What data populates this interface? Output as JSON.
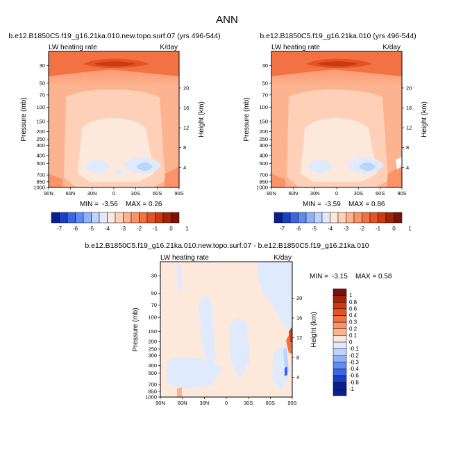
{
  "figure_title": "ANN",
  "chart_data": [
    {
      "type": "contour",
      "title": "b.e12.B1850C5.f19_g16.21ka.010.new.topo.surf.07 (yrs 496-544)",
      "variable_label": "LW heating rate",
      "units_label": "K/day",
      "xlabel": "",
      "ylabel": "Pressure (mb)",
      "y2label": "Height (km)",
      "x_ticks": [
        "90N",
        "60N",
        "30N",
        "0",
        "30S",
        "60S",
        "90S"
      ],
      "y_ticks": [
        "30",
        "50",
        "70",
        "100",
        "150",
        "200",
        "250",
        "300",
        "400",
        "500",
        "700",
        "850",
        "1000"
      ],
      "y2_ticks": [
        "20",
        "16",
        "12",
        "8",
        "4"
      ],
      "stats": {
        "min_label": "MIN =",
        "min": "-3.56",
        "max_label": "MAX =",
        "max": "0.26"
      },
      "colorbar": {
        "labels": [
          "-7",
          "-6",
          "-5",
          "-4",
          "-3",
          "-2",
          "-1",
          "0",
          "1"
        ]
      }
    },
    {
      "type": "contour",
      "title": "b.e12.B1850C5.f19_g16.21ka.010 (yrs 496-544)",
      "variable_label": "LW heating rate",
      "units_label": "K/day",
      "xlabel": "",
      "ylabel": "Pressure (mb)",
      "y2label": "Height (km)",
      "x_ticks": [
        "90N",
        "60N",
        "30N",
        "0",
        "30S",
        "60S",
        "90S"
      ],
      "y_ticks": [
        "30",
        "50",
        "70",
        "100",
        "150",
        "200",
        "250",
        "300",
        "400",
        "500",
        "700",
        "850",
        "1000"
      ],
      "y2_ticks": [
        "20",
        "16",
        "12",
        "8",
        "4"
      ],
      "stats": {
        "min_label": "MIN =",
        "min": "-3.59",
        "max_label": "MAX =",
        "max": "0.86"
      },
      "colorbar": {
        "labels": [
          "-7",
          "-6",
          "-5",
          "-4",
          "-3",
          "-2",
          "-1",
          "0",
          "1"
        ]
      }
    },
    {
      "type": "contour",
      "title": "b.e12.B1850C5.f19_g16.21ka.010.new.topo.surf.07 - b.e12.B1850C5.f19_g16.21ka.010",
      "variable_label": "LW heating rate",
      "units_label": "K/day",
      "xlabel": "",
      "ylabel": "Pressure (mb)",
      "y2label": "Height (km)",
      "x_ticks": [
        "90N",
        "60N",
        "30N",
        "0",
        "30S",
        "60S",
        "90S"
      ],
      "y_ticks": [
        "30",
        "50",
        "70",
        "100",
        "150",
        "200",
        "250",
        "300",
        "400",
        "500",
        "700",
        "850",
        "1000"
      ],
      "y2_ticks": [
        "20",
        "16",
        "12",
        "8",
        "4"
      ],
      "stats": {
        "min_label": "MIN =",
        "min": "-3.15",
        "max_label": "MAX =",
        "max": "0.58"
      },
      "colorbar": {
        "labels": [
          "1",
          "0.8",
          "0.6",
          "0.4",
          "0.3",
          "0.2",
          "0.1",
          "0",
          "-0.1",
          "-0.2",
          "-0.3",
          "-0.4",
          "-0.6",
          "-0.8",
          "-1"
        ]
      }
    }
  ],
  "colors": {
    "abs_scale": [
      "#0a1f8f",
      "#1b3fc6",
      "#3a66e6",
      "#5f8bf2",
      "#8eb2f7",
      "#bcd4fb",
      "#dfeafd",
      "#fde9dc",
      "#fdd0b7",
      "#fcb38f",
      "#fb9268",
      "#f37244",
      "#e55325",
      "#cb3a12",
      "#a32409",
      "#7a1306"
    ],
    "diff_scale": [
      "#7a1306",
      "#a32409",
      "#cb3a12",
      "#e55325",
      "#f37244",
      "#fb9268",
      "#fcb38f",
      "#fde9dc",
      "#dfeafd",
      "#bcd4fb",
      "#8eb2f7",
      "#5f8bf2",
      "#3a66e6",
      "#1b3fc6",
      "#0a1f8f"
    ]
  }
}
